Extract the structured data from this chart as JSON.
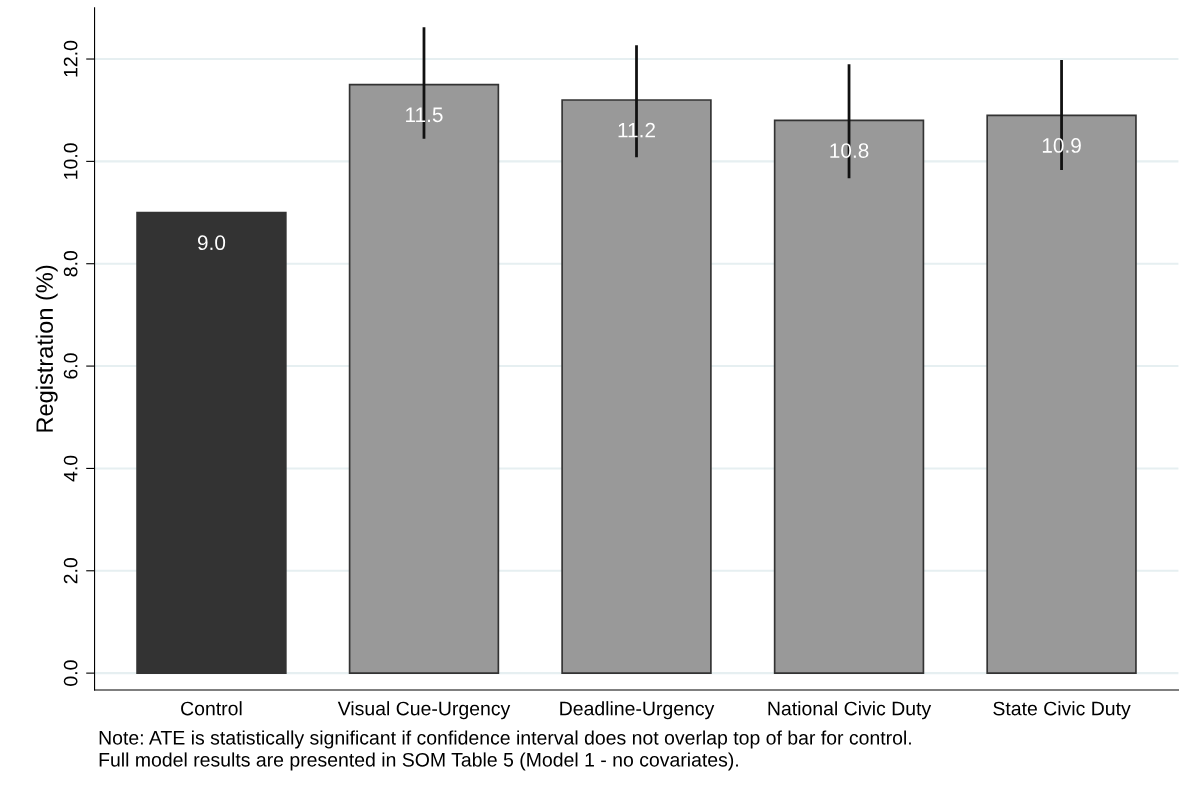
{
  "chart_data": {
    "type": "bar",
    "ylabel": "Registration (%)",
    "categories": [
      "Control",
      "Visual Cue-Urgency",
      "Deadline-Urgency",
      "National Civic Duty",
      "State Civic Duty"
    ],
    "values": [
      9.0,
      11.5,
      11.2,
      10.8,
      10.9
    ],
    "colors": [
      "#333333",
      "#999999",
      "#999999",
      "#999999",
      "#999999"
    ],
    "errors": [
      null,
      [
        10.44,
        12.62
      ],
      [
        10.08,
        12.27
      ],
      [
        9.67,
        11.9
      ],
      [
        9.83,
        11.98
      ]
    ],
    "value_labels": [
      "9.0",
      "11.5",
      "11.2",
      "10.8",
      "10.9"
    ],
    "ylim": [
      -0.33,
      13.0
    ],
    "yticks": [
      {
        "value": 0,
        "label": "0.0"
      },
      {
        "value": 2,
        "label": "2.0"
      },
      {
        "value": 4,
        "label": "4.0"
      },
      {
        "value": 6,
        "label": "6.0"
      },
      {
        "value": 8,
        "label": "8.0"
      },
      {
        "value": 10,
        "label": "10.0"
      },
      {
        "value": 12,
        "label": "12.0"
      }
    ],
    "grid": "y",
    "legend": false,
    "annotations": [
      "Note: ATE is statistically significant if confidence interval does not overlap top of bar for control.",
      "Full model results are presented in SOM Table 5 (Model 1 - no covariates)."
    ]
  }
}
